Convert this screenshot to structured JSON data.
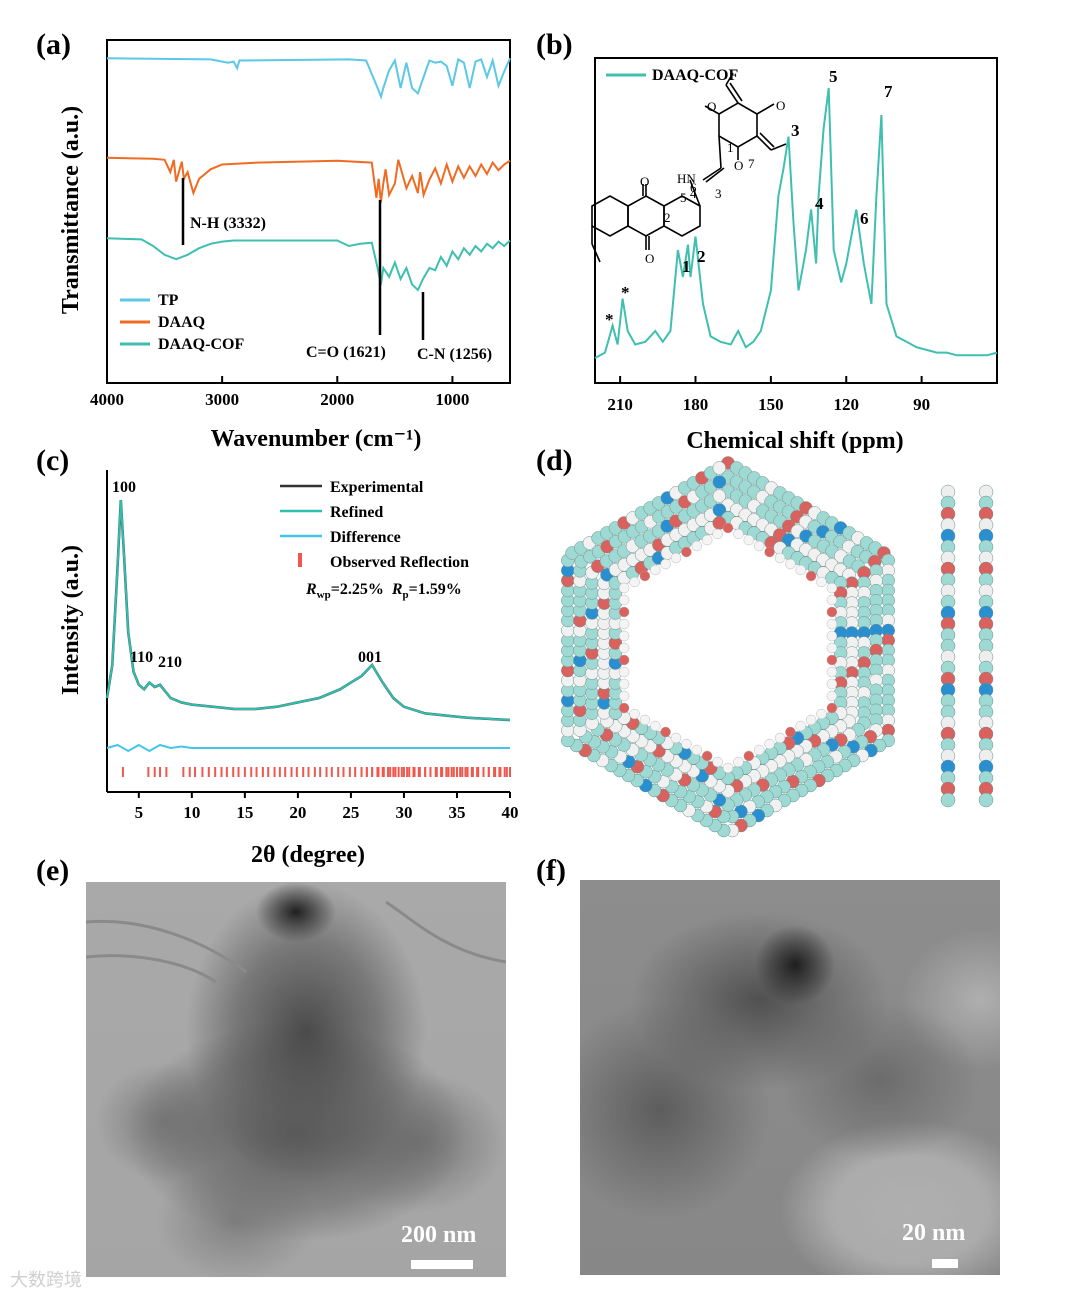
{
  "panels": {
    "a": "(a)",
    "b": "(b)",
    "c": "(c)",
    "d": "(d)",
    "e": "(e)",
    "f": "(f)"
  },
  "colors": {
    "tp": "#5bc8e6",
    "daaq": "#f06b22",
    "cof": "#3fbfb0",
    "experimental": "#333333",
    "refined": "#2fbfae",
    "difference": "#45c4e8",
    "reflection": "#f0584f"
  },
  "chart_data": [
    {
      "id": "a",
      "type": "line",
      "title": "",
      "xlabel": "Wavenumber (cm⁻¹)",
      "ylabel": "Transmittance (a.u.)",
      "xlim": [
        4000,
        500
      ],
      "xticks": [
        "4000",
        "3000",
        "2000",
        "1000"
      ],
      "xtick_values": [
        4000,
        3000,
        2000,
        1000
      ],
      "legend": [
        "TP",
        "DAAQ",
        "DAAQ-COF"
      ],
      "annotations": [
        "N-H (3332)",
        "C=O (1621)",
        "C-N (1256)"
      ],
      "series": [
        {
          "name": "TP",
          "x": [
            4000,
            3100,
            2950,
            2900,
            2870,
            2850,
            1900,
            1750,
            1650,
            1620,
            1600,
            1550,
            1500,
            1450,
            1400,
            1350,
            1300,
            1250,
            1200,
            1150,
            1100,
            1050,
            1000,
            950,
            900,
            850,
            800,
            750,
            700,
            650,
            600,
            550,
            500
          ],
          "y": [
            0.97,
            0.96,
            0.93,
            0.94,
            0.88,
            0.95,
            0.96,
            0.95,
            0.7,
            0.62,
            0.7,
            0.86,
            0.95,
            0.7,
            0.93,
            0.7,
            0.65,
            0.8,
            0.95,
            0.93,
            0.94,
            0.9,
            0.72,
            0.96,
            0.93,
            0.7,
            0.94,
            0.96,
            0.8,
            0.95,
            0.72,
            0.85,
            0.97
          ]
        },
        {
          "name": "DAAQ",
          "x": [
            4000,
            3600,
            3500,
            3450,
            3420,
            3400,
            3350,
            3332,
            3300,
            3250,
            3200,
            3100,
            3000,
            2700,
            2000,
            1700,
            1660,
            1640,
            1621,
            1600,
            1580,
            1550,
            1500,
            1470,
            1400,
            1350,
            1300,
            1280,
            1250,
            1200,
            1150,
            1100,
            1050,
            1000,
            950,
            900,
            850,
            800,
            750,
            700,
            650,
            600,
            550,
            500
          ],
          "y": [
            0.97,
            0.96,
            0.95,
            0.82,
            0.95,
            0.72,
            0.93,
            0.75,
            0.82,
            0.6,
            0.75,
            0.85,
            0.9,
            0.92,
            0.94,
            0.92,
            0.55,
            0.75,
            0.5,
            0.7,
            0.85,
            0.58,
            0.7,
            0.95,
            0.65,
            0.78,
            0.6,
            0.82,
            0.58,
            0.74,
            0.86,
            0.7,
            0.9,
            0.72,
            0.88,
            0.76,
            0.88,
            0.78,
            0.9,
            0.8,
            0.92,
            0.84,
            0.9,
            0.94
          ]
        },
        {
          "name": "DAAQ-COF",
          "x": [
            4000,
            3700,
            3600,
            3500,
            3400,
            3300,
            3200,
            3100,
            3000,
            2900,
            2000,
            1900,
            1800,
            1700,
            1650,
            1621,
            1600,
            1550,
            1500,
            1450,
            1400,
            1350,
            1300,
            1256,
            1200,
            1150,
            1100,
            1050,
            1000,
            950,
            900,
            850,
            800,
            750,
            700,
            650,
            600,
            550,
            500
          ],
          "y": [
            0.97,
            0.96,
            0.9,
            0.82,
            0.78,
            0.82,
            0.88,
            0.92,
            0.94,
            0.95,
            0.95,
            0.9,
            0.92,
            0.93,
            0.7,
            0.55,
            0.7,
            0.62,
            0.75,
            0.6,
            0.7,
            0.55,
            0.5,
            0.6,
            0.7,
            0.68,
            0.8,
            0.72,
            0.85,
            0.78,
            0.88,
            0.82,
            0.9,
            0.85,
            0.92,
            0.88,
            0.94,
            0.9,
            0.95
          ]
        }
      ]
    },
    {
      "id": "b",
      "type": "line",
      "title": "",
      "xlabel": "Chemical shift (ppm)",
      "ylabel": "",
      "xlim": [
        220,
        60
      ],
      "xticks": [
        "210",
        "180",
        "150",
        "120",
        "90"
      ],
      "xtick_values": [
        210,
        180,
        150,
        120,
        90
      ],
      "legend": [
        "DAAQ-COF"
      ],
      "peak_labels": [
        "*",
        "*",
        "1",
        "2",
        "3",
        "4",
        "5",
        "6",
        "7"
      ],
      "structure_labels": [
        "1",
        "2",
        "3",
        "4",
        "5",
        "6",
        "7",
        "HN"
      ],
      "series": [
        {
          "name": "DAAQ-COF",
          "x": [
            220,
            216,
            213,
            211,
            209,
            207,
            204,
            200,
            196,
            193,
            190,
            187,
            185,
            183,
            182,
            180,
            177,
            174,
            170,
            166,
            163,
            160,
            157,
            154,
            150,
            147,
            145,
            143,
            141,
            139,
            136,
            134,
            132,
            131,
            129,
            127,
            125,
            122,
            120,
            118,
            116,
            113,
            110,
            108,
            106,
            104,
            100,
            96,
            92,
            88,
            84,
            80,
            76,
            72,
            68,
            64,
            60
          ],
          "y": [
            0.0,
            0.02,
            0.12,
            0.05,
            0.22,
            0.1,
            0.05,
            0.06,
            0.1,
            0.06,
            0.1,
            0.4,
            0.3,
            0.42,
            0.3,
            0.45,
            0.2,
            0.08,
            0.06,
            0.05,
            0.1,
            0.04,
            0.06,
            0.1,
            0.25,
            0.6,
            0.7,
            0.82,
            0.5,
            0.25,
            0.4,
            0.55,
            0.35,
            0.6,
            0.85,
            1.0,
            0.4,
            0.28,
            0.35,
            0.45,
            0.55,
            0.35,
            0.2,
            0.6,
            0.9,
            0.2,
            0.08,
            0.06,
            0.04,
            0.03,
            0.02,
            0.02,
            0.01,
            0.01,
            0.01,
            0.01,
            0.02
          ]
        }
      ]
    },
    {
      "id": "c",
      "type": "line",
      "title": "",
      "xlabel": "2θ (degree)",
      "ylabel": "Intensity (a.u.)",
      "xlim": [
        2,
        40
      ],
      "xticks": [
        "5",
        "10",
        "15",
        "20",
        "25",
        "30",
        "35",
        "40"
      ],
      "xtick_values": [
        5,
        10,
        15,
        20,
        25,
        30,
        35,
        40
      ],
      "legend": [
        "Experimental",
        "Refined",
        "Difference",
        "Observed Reflection"
      ],
      "fit_stats": {
        "rwp": "=2.25%",
        "rp": "=1.59%"
      },
      "peak_labels": [
        "100",
        "110",
        "210",
        "001"
      ],
      "series": [
        {
          "name": "Experimental",
          "x": [
            2,
            2.5,
            3,
            3.3,
            3.6,
            4,
            4.5,
            5,
            5.5,
            6,
            6.5,
            7,
            7.5,
            8,
            9,
            10,
            12,
            14,
            16,
            18,
            20,
            22,
            24,
            25,
            26,
            27,
            28,
            29,
            30,
            32,
            34,
            36,
            38,
            40
          ],
          "y": [
            0.1,
            0.25,
            0.7,
            1.0,
            0.75,
            0.4,
            0.22,
            0.16,
            0.14,
            0.17,
            0.15,
            0.16,
            0.13,
            0.1,
            0.08,
            0.07,
            0.06,
            0.05,
            0.05,
            0.06,
            0.08,
            0.1,
            0.14,
            0.17,
            0.2,
            0.25,
            0.17,
            0.1,
            0.06,
            0.03,
            0.02,
            0.01,
            0.005,
            0.0
          ]
        },
        {
          "name": "Difference",
          "x": [
            2,
            3,
            4,
            5,
            6,
            7,
            8,
            9,
            10,
            11,
            12,
            15,
            20,
            25,
            30,
            35,
            40
          ],
          "y": [
            0.0,
            0.01,
            -0.01,
            0.01,
            -0.01,
            0.01,
            0.0,
            0.005,
            0.0,
            0.0,
            0.0,
            0.0,
            0.0,
            0.0,
            0.0,
            0.0,
            0.0
          ]
        }
      ]
    }
  ],
  "reflections_c": [
    3.5,
    5.9,
    6.5,
    7.0,
    7.6,
    9.2,
    9.8,
    10.3,
    11.0,
    11.6,
    12.2,
    12.8,
    13.3,
    13.9,
    14.4,
    15.0,
    15.6,
    16.1,
    16.7,
    17.2,
    17.8,
    18.3,
    18.8,
    19.4,
    19.9,
    20.5,
    21.0,
    21.6,
    22.1,
    22.7,
    23.2,
    23.8,
    24.3,
    24.9,
    25.4,
    26.0,
    26.5,
    27.0,
    27.6,
    28.1,
    28.7,
    29.2,
    29.8,
    30.3,
    30.9,
    31.4,
    32.0,
    32.5,
    33.1,
    33.6,
    34.2,
    34.7,
    35.3,
    35.8,
    36.4,
    36.9,
    37.5,
    38.0,
    38.6,
    39.1,
    39.7
  ],
  "scale_e": "200 nm",
  "scale_f": "20 nm",
  "watermark": "大数跨境"
}
